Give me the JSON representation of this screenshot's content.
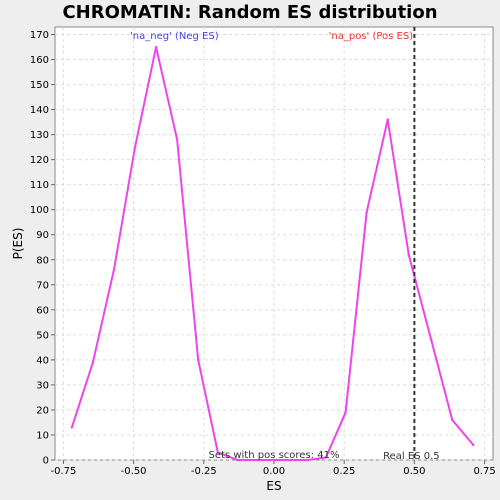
{
  "chart_data": {
    "type": "line",
    "title": "CHROMATIN: Random ES distribution",
    "xlabel": "ES",
    "ylabel": "P(ES)",
    "xlim": [
      -0.78,
      0.78
    ],
    "ylim": [
      0,
      173
    ],
    "xticks": [
      -0.75,
      -0.5,
      -0.25,
      0.0,
      0.25,
      0.5,
      0.75
    ],
    "xtick_labels": [
      "-0.75",
      "-0.50",
      "-0.25",
      "0.00",
      "0.25",
      "0.50",
      "0.75"
    ],
    "yticks": [
      0,
      10,
      20,
      30,
      40,
      50,
      60,
      70,
      80,
      90,
      100,
      110,
      120,
      130,
      140,
      150,
      160,
      170
    ],
    "grid": true,
    "line_color": "#ee44ee",
    "x": [
      -0.72,
      -0.645,
      -0.57,
      -0.495,
      -0.42,
      -0.345,
      -0.27,
      -0.2,
      -0.13,
      -0.06,
      0.0,
      0.06,
      0.12,
      0.185,
      0.255,
      0.33,
      0.405,
      0.48,
      0.56,
      0.635,
      0.71
    ],
    "y": [
      13,
      39,
      76,
      125,
      165,
      128,
      40,
      3,
      0,
      0,
      0,
      0,
      0,
      1,
      19,
      99,
      136,
      82,
      48,
      16,
      6
    ],
    "vline": {
      "x": 0.5,
      "label": "Real ES 0.5",
      "color": "#333333"
    },
    "annotations": {
      "neg_label": "'na_neg' (Neg ES)",
      "neg_color": "#4444dd",
      "pos_label": "'na_pos' (Pos ES)",
      "pos_color": "#ee3333",
      "pos_scores": "Sets with pos scores: 41%"
    }
  }
}
